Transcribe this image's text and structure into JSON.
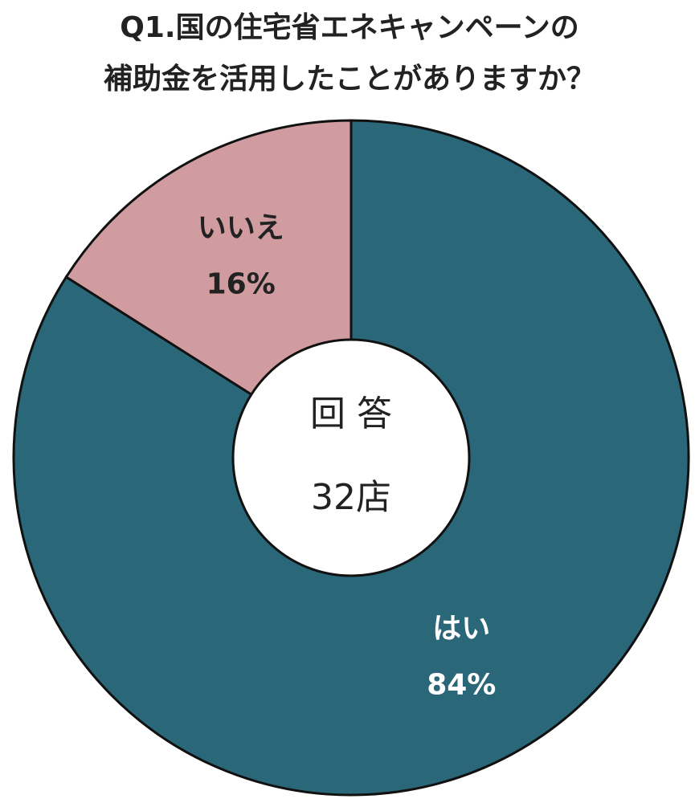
{
  "chart_data": {
    "type": "donut",
    "title": [
      "Q1.国の住宅省エネキャンペーンの",
      "補助金を活用したことがありますか？"
    ],
    "categories": [
      "はい",
      "いいえ"
    ],
    "values": [
      84,
      16
    ],
    "value_labels": [
      "84%",
      "16%"
    ],
    "colors": [
      "#2a6779",
      "#d09ca0"
    ],
    "label_colors": [
      "#ffffff",
      "#222222"
    ],
    "center_label": [
      "回 答",
      "32店"
    ]
  }
}
